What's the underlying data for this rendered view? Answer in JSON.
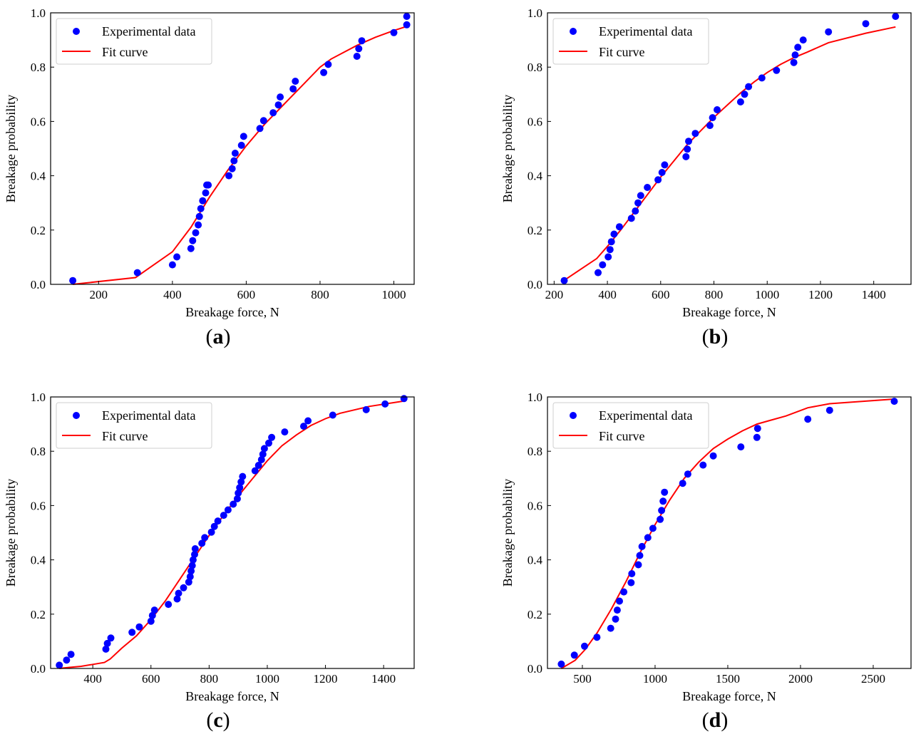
{
  "chart_data": [
    {
      "type": "scatter",
      "panel_label": "a",
      "xlabel": "Breakage force, N",
      "ylabel": "Breakage probability",
      "xlim": [
        70,
        1055
      ],
      "ylim": [
        0,
        1
      ],
      "xticks": [
        200,
        400,
        600,
        800,
        1000
      ],
      "yticks": [
        0.0,
        0.2,
        0.4,
        0.6,
        0.8,
        1.0
      ],
      "legend": {
        "position": "top-left",
        "entries": [
          "Experimental data",
          "Fit curve"
        ]
      },
      "series": [
        {
          "name": "Experimental data",
          "kind": "scatter",
          "color": "#0000ff",
          "x": [
            130,
            305,
            400,
            412,
            450,
            455,
            463,
            470,
            473,
            477,
            482,
            490,
            493,
            497,
            553,
            562,
            567,
            570,
            587,
            593,
            637,
            647,
            673,
            687,
            692,
            727,
            733,
            810,
            822,
            900,
            905,
            913,
            1000,
            1035,
            1035
          ],
          "y": [
            0.014,
            0.043,
            0.072,
            0.101,
            0.132,
            0.161,
            0.19,
            0.219,
            0.25,
            0.279,
            0.308,
            0.337,
            0.366,
            0.366,
            0.4,
            0.426,
            0.455,
            0.483,
            0.512,
            0.545,
            0.574,
            0.603,
            0.632,
            0.661,
            0.69,
            0.72,
            0.748,
            0.78,
            0.81,
            0.84,
            0.868,
            0.897,
            0.927,
            0.956,
            0.987
          ]
        },
        {
          "name": "Fit curve",
          "kind": "line",
          "color": "#ff0000",
          "x": [
            130,
            300,
            400,
            450,
            500,
            550,
            600,
            650,
            700,
            750,
            800,
            830,
            900,
            950,
            1000,
            1035
          ],
          "y": [
            0.0,
            0.025,
            0.12,
            0.21,
            0.32,
            0.42,
            0.51,
            0.59,
            0.66,
            0.73,
            0.8,
            0.83,
            0.88,
            0.91,
            0.935,
            0.95
          ]
        }
      ]
    },
    {
      "type": "scatter",
      "panel_label": "b",
      "xlabel": "Breakage force, N",
      "ylabel": "Breakage probability",
      "xlim": [
        175,
        1540
      ],
      "ylim": [
        0,
        1
      ],
      "xticks": [
        200,
        400,
        600,
        800,
        1000,
        1200,
        1400
      ],
      "yticks": [
        0.0,
        0.2,
        0.4,
        0.6,
        0.8,
        1.0
      ],
      "legend": {
        "position": "top-left",
        "entries": [
          "Experimental data",
          "Fit curve"
        ]
      },
      "series": [
        {
          "name": "Experimental data",
          "kind": "scatter",
          "color": "#0000ff",
          "x": [
            238,
            365,
            382,
            403,
            410,
            415,
            425,
            445,
            490,
            505,
            515,
            525,
            550,
            590,
            605,
            615,
            695,
            700,
            705,
            730,
            785,
            795,
            812,
            900,
            915,
            930,
            980,
            1035,
            1100,
            1105,
            1115,
            1135,
            1230,
            1370,
            1482
          ],
          "y": [
            0.014,
            0.043,
            0.072,
            0.101,
            0.128,
            0.157,
            0.185,
            0.212,
            0.243,
            0.27,
            0.3,
            0.327,
            0.357,
            0.385,
            0.412,
            0.44,
            0.47,
            0.498,
            0.527,
            0.556,
            0.585,
            0.614,
            0.643,
            0.672,
            0.7,
            0.728,
            0.76,
            0.788,
            0.817,
            0.845,
            0.873,
            0.9,
            0.93,
            0.96,
            0.987
          ]
        },
        {
          "name": "Fit curve",
          "kind": "line",
          "color": "#ff0000",
          "x": [
            238,
            360,
            400,
            450,
            500,
            550,
            600,
            650,
            700,
            750,
            800,
            850,
            900,
            950,
            1000,
            1050,
            1100,
            1150,
            1230,
            1370,
            1482
          ],
          "y": [
            0.015,
            0.095,
            0.14,
            0.2,
            0.265,
            0.33,
            0.395,
            0.455,
            0.515,
            0.565,
            0.615,
            0.66,
            0.705,
            0.745,
            0.78,
            0.81,
            0.835,
            0.855,
            0.89,
            0.925,
            0.948
          ]
        }
      ]
    },
    {
      "type": "scatter",
      "panel_label": "c",
      "xlabel": "Breakage force, N",
      "ylabel": "Breakage probability",
      "xlim": [
        255,
        1505
      ],
      "ylim": [
        0,
        1
      ],
      "xticks": [
        400,
        600,
        800,
        1000,
        1200,
        1400
      ],
      "yticks": [
        0.0,
        0.2,
        0.4,
        0.6,
        0.8,
        1.0
      ],
      "legend": {
        "position": "top-left",
        "entries": [
          "Experimental data",
          "Fit curve"
        ]
      },
      "series": [
        {
          "name": "Experimental data",
          "kind": "scatter",
          "color": "#0000ff",
          "x": [
            285,
            310,
            325,
            445,
            450,
            462,
            535,
            560,
            600,
            605,
            612,
            660,
            690,
            695,
            712,
            730,
            735,
            738,
            742,
            745,
            750,
            752,
            775,
            785,
            808,
            818,
            830,
            850,
            865,
            883,
            897,
            900,
            905,
            910,
            915,
            958,
            970,
            980,
            985,
            990,
            1005,
            1015,
            1060,
            1125,
            1140,
            1225,
            1340,
            1405,
            1470
          ],
          "y": [
            0.012,
            0.031,
            0.052,
            0.071,
            0.092,
            0.112,
            0.133,
            0.153,
            0.174,
            0.195,
            0.215,
            0.236,
            0.256,
            0.277,
            0.297,
            0.318,
            0.338,
            0.359,
            0.379,
            0.4,
            0.42,
            0.441,
            0.461,
            0.482,
            0.502,
            0.523,
            0.543,
            0.564,
            0.584,
            0.605,
            0.625,
            0.646,
            0.666,
            0.687,
            0.707,
            0.728,
            0.748,
            0.769,
            0.789,
            0.81,
            0.83,
            0.851,
            0.871,
            0.892,
            0.912,
            0.933,
            0.953,
            0.974,
            0.994
          ]
        },
        {
          "name": "Fit curve",
          "kind": "line",
          "color": "#ff0000",
          "x": [
            285,
            320,
            360,
            400,
            440,
            460,
            500,
            550,
            600,
            650,
            700,
            750,
            800,
            850,
            900,
            950,
            1000,
            1050,
            1100,
            1150,
            1200,
            1250,
            1350,
            1470
          ],
          "y": [
            0.0,
            0.004,
            0.008,
            0.015,
            0.022,
            0.035,
            0.075,
            0.12,
            0.18,
            0.25,
            0.33,
            0.41,
            0.49,
            0.565,
            0.635,
            0.7,
            0.765,
            0.82,
            0.86,
            0.895,
            0.92,
            0.94,
            0.965,
            0.985
          ]
        }
      ]
    },
    {
      "type": "scatter",
      "panel_label": "d",
      "xlabel": "Breakage force, N",
      "ylabel": "Breakage probability",
      "xlim": [
        260,
        2760
      ],
      "ylim": [
        0,
        1
      ],
      "xticks": [
        500,
        1000,
        1500,
        2000,
        2500
      ],
      "yticks": [
        0.0,
        0.2,
        0.4,
        0.6,
        0.8,
        1.0
      ],
      "legend": {
        "position": "top-left",
        "entries": [
          "Experimental data",
          "Fit curve"
        ]
      },
      "series": [
        {
          "name": "Experimental data",
          "kind": "scatter",
          "color": "#0000ff",
          "x": [
            355,
            445,
            515,
            600,
            695,
            728,
            740,
            755,
            785,
            835,
            840,
            885,
            895,
            910,
            950,
            985,
            1035,
            1045,
            1055,
            1065,
            1190,
            1225,
            1330,
            1400,
            1590,
            1700,
            1705,
            2050,
            2200,
            2645
          ],
          "y": [
            0.016,
            0.049,
            0.082,
            0.115,
            0.148,
            0.182,
            0.215,
            0.248,
            0.282,
            0.316,
            0.349,
            0.382,
            0.416,
            0.449,
            0.482,
            0.516,
            0.549,
            0.582,
            0.616,
            0.649,
            0.682,
            0.716,
            0.749,
            0.783,
            0.816,
            0.851,
            0.884,
            0.918,
            0.951,
            0.984
          ]
        },
        {
          "name": "Fit curve",
          "kind": "line",
          "color": "#ff0000",
          "x": [
            355,
            450,
            520,
            600,
            700,
            800,
            900,
            1000,
            1100,
            1200,
            1300,
            1400,
            1500,
            1600,
            1700,
            1800,
            1900,
            2050,
            2200,
            2645
          ],
          "y": [
            0.0,
            0.03,
            0.07,
            0.13,
            0.22,
            0.32,
            0.43,
            0.53,
            0.62,
            0.7,
            0.76,
            0.81,
            0.845,
            0.875,
            0.9,
            0.915,
            0.93,
            0.96,
            0.975,
            0.992
          ]
        }
      ]
    }
  ]
}
